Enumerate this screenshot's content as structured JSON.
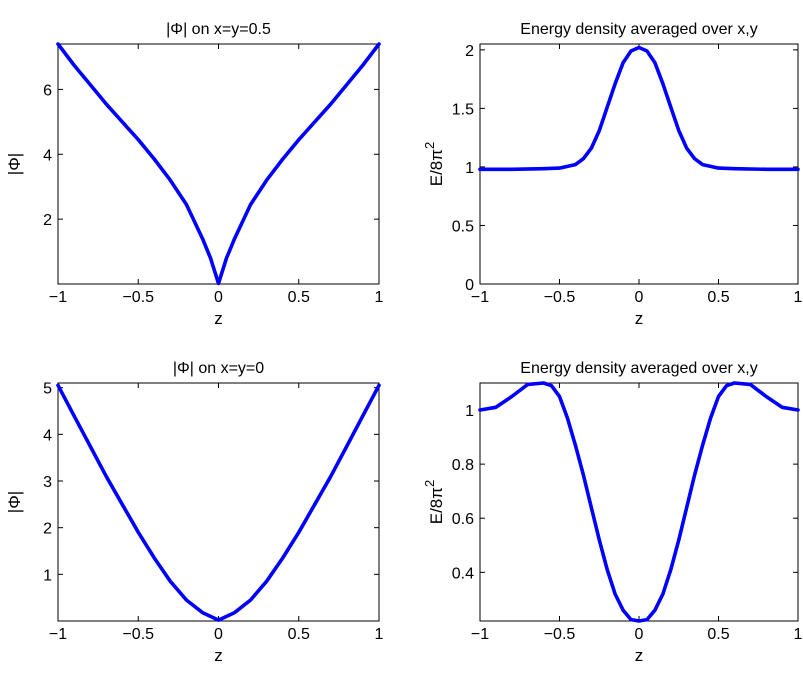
{
  "chart_data": [
    {
      "type": "line",
      "title": "|Φ| on x=y=0.5",
      "xlabel": "z",
      "ylabel": "|Φ|",
      "xlim": [
        -1,
        1
      ],
      "ylim": [
        0,
        7.4
      ],
      "xticks": [
        -1,
        -0.5,
        0,
        0.5,
        1
      ],
      "xtick_labels": [
        "−1",
        "−0.5",
        "0",
        "0.5",
        "1"
      ],
      "yticks": [
        2,
        4,
        6
      ],
      "ytick_labels": [
        "2",
        "4",
        "6"
      ],
      "grid": false,
      "series": [
        {
          "color": "#0000ff",
          "x": [
            -1,
            -0.9,
            -0.8,
            -0.7,
            -0.6,
            -0.5,
            -0.4,
            -0.3,
            -0.2,
            -0.1,
            -0.05,
            0,
            0.05,
            0.1,
            0.2,
            0.3,
            0.4,
            0.5,
            0.6,
            0.7,
            0.8,
            0.9,
            1
          ],
          "y": [
            7.4,
            6.75,
            6.15,
            5.55,
            5.0,
            4.45,
            3.85,
            3.2,
            2.45,
            1.4,
            0.8,
            0.02,
            0.8,
            1.4,
            2.45,
            3.2,
            3.85,
            4.45,
            5.0,
            5.55,
            6.15,
            6.75,
            7.4
          ]
        }
      ]
    },
    {
      "type": "line",
      "title": "Energy density averaged over x,y",
      "xlabel": "z",
      "ylabel": "E/8π",
      "ylabel_sup": "2",
      "xlim": [
        -1,
        1
      ],
      "ylim": [
        0,
        2.05
      ],
      "xticks": [
        -1,
        -0.5,
        0,
        0.5,
        1
      ],
      "xtick_labels": [
        "−1",
        "−0.5",
        "0",
        "0.5",
        "1"
      ],
      "yticks": [
        0,
        0.5,
        1,
        1.5,
        2
      ],
      "ytick_labels": [
        "0",
        "0.5",
        "1",
        "1.5",
        "2"
      ],
      "grid": false,
      "series": [
        {
          "color": "#0000ff",
          "x": [
            -1,
            -0.8,
            -0.6,
            -0.5,
            -0.4,
            -0.35,
            -0.3,
            -0.25,
            -0.2,
            -0.15,
            -0.1,
            -0.05,
            0,
            0.05,
            0.1,
            0.15,
            0.2,
            0.25,
            0.3,
            0.35,
            0.4,
            0.5,
            0.6,
            0.8,
            1
          ],
          "y": [
            0.98,
            0.98,
            0.985,
            0.99,
            1.02,
            1.07,
            1.16,
            1.31,
            1.51,
            1.71,
            1.89,
            1.99,
            2.02,
            1.99,
            1.89,
            1.71,
            1.51,
            1.31,
            1.16,
            1.07,
            1.02,
            0.99,
            0.985,
            0.98,
            0.98
          ]
        }
      ]
    },
    {
      "type": "line",
      "title": "|Φ| on x=y=0",
      "xlabel": "z",
      "ylabel": "|Φ|",
      "xlim": [
        -1,
        1
      ],
      "ylim": [
        0,
        5.1
      ],
      "xticks": [
        -1,
        -0.5,
        0,
        0.5,
        1
      ],
      "xtick_labels": [
        "−1",
        "−0.5",
        "0",
        "0.5",
        "1"
      ],
      "yticks": [
        1,
        2,
        3,
        4,
        5
      ],
      "ytick_labels": [
        "1",
        "2",
        "3",
        "4",
        "5"
      ],
      "grid": false,
      "series": [
        {
          "color": "#0000ff",
          "x": [
            -1,
            -0.9,
            -0.8,
            -0.7,
            -0.6,
            -0.5,
            -0.4,
            -0.3,
            -0.2,
            -0.1,
            0,
            0.1,
            0.2,
            0.3,
            0.4,
            0.5,
            0.6,
            0.7,
            0.8,
            0.9,
            1
          ],
          "y": [
            5.05,
            4.4,
            3.75,
            3.1,
            2.5,
            1.9,
            1.35,
            0.85,
            0.45,
            0.18,
            0.02,
            0.18,
            0.45,
            0.85,
            1.35,
            1.9,
            2.5,
            3.1,
            3.75,
            4.4,
            5.05
          ]
        }
      ]
    },
    {
      "type": "line",
      "title": "Energy density averaged over x,y",
      "xlabel": "z",
      "ylabel": "E/8π",
      "ylabel_sup": "2",
      "xlim": [
        -1,
        1
      ],
      "ylim": [
        0.22,
        1.1
      ],
      "xticks": [
        -1,
        -0.5,
        0,
        0.5,
        1
      ],
      "xtick_labels": [
        "−1",
        "−0.5",
        "0",
        "0.5",
        "1"
      ],
      "yticks": [
        0.4,
        0.6,
        0.8,
        1
      ],
      "ytick_labels": [
        "0.4",
        "0.6",
        "0.8",
        "1"
      ],
      "grid": false,
      "series": [
        {
          "color": "#0000ff",
          "x": [
            -1,
            -0.9,
            -0.8,
            -0.7,
            -0.6,
            -0.55,
            -0.5,
            -0.45,
            -0.4,
            -0.35,
            -0.3,
            -0.25,
            -0.2,
            -0.15,
            -0.1,
            -0.05,
            0,
            0.05,
            0.1,
            0.15,
            0.2,
            0.25,
            0.3,
            0.35,
            0.4,
            0.45,
            0.5,
            0.55,
            0.6,
            0.7,
            0.8,
            0.9,
            1
          ],
          "y": [
            1.0,
            1.01,
            1.05,
            1.095,
            1.1,
            1.09,
            1.05,
            0.97,
            0.87,
            0.76,
            0.64,
            0.52,
            0.41,
            0.32,
            0.26,
            0.225,
            0.22,
            0.225,
            0.26,
            0.32,
            0.41,
            0.52,
            0.64,
            0.76,
            0.87,
            0.97,
            1.05,
            1.09,
            1.1,
            1.095,
            1.05,
            1.01,
            1.0
          ]
        }
      ]
    }
  ]
}
